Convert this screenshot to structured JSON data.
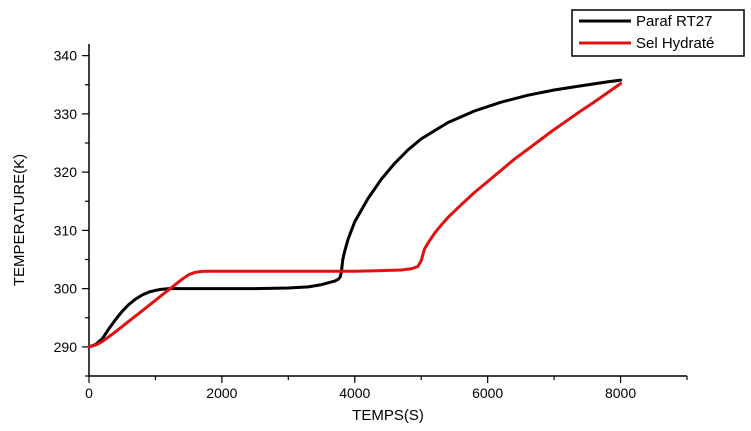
{
  "chart_data": {
    "type": "line",
    "title": "",
    "xlabel": "TEMPS(S)",
    "ylabel": "TEMPERATURE(K)",
    "xlim": [
      0,
      9000
    ],
    "ylim": [
      285,
      342
    ],
    "xticks": [
      0,
      2000,
      4000,
      6000,
      8000
    ],
    "xtick_labels": [
      "0",
      "2000",
      "4000",
      "6000",
      "8000"
    ],
    "yticks": [
      290,
      300,
      310,
      320,
      330,
      340
    ],
    "ytick_labels": [
      "290",
      "300",
      "310",
      "320",
      "330",
      "340"
    ],
    "grid": false,
    "legend_position": "top-right",
    "series": [
      {
        "name": "Paraf RT27",
        "color": "#000000",
        "x": [
          0,
          100,
          200,
          300,
          400,
          500,
          600,
          700,
          800,
          900,
          1000,
          1100,
          1200,
          1500,
          2000,
          2500,
          3000,
          3300,
          3500,
          3600,
          3700,
          3750,
          3780,
          3800,
          3820,
          3850,
          3900,
          4000,
          4200,
          4400,
          4600,
          4800,
          5000,
          5400,
          5800,
          6200,
          6600,
          7000,
          7400,
          7800,
          8000
        ],
        "y": [
          290,
          290.4,
          291.4,
          293.1,
          294.7,
          296.1,
          297.3,
          298.2,
          298.9,
          299.4,
          299.7,
          299.9,
          300,
          300,
          300,
          300,
          300.1,
          300.3,
          300.7,
          301,
          301.3,
          301.6,
          302,
          303,
          305,
          306.5,
          308.5,
          311.5,
          315.5,
          318.8,
          321.5,
          323.8,
          325.7,
          328.5,
          330.5,
          332,
          333.2,
          334.1,
          334.8,
          335.5,
          335.8
        ]
      },
      {
        "name": "Sel Hydraté",
        "color": "#e01010",
        "x": [
          0,
          100,
          200,
          400,
          600,
          800,
          1000,
          1200,
          1400,
          1500,
          1600,
          1700,
          1800,
          2000,
          2500,
          3000,
          3500,
          4000,
          4400,
          4700,
          4850,
          4950,
          5000,
          5050,
          5100,
          5200,
          5300,
          5400,
          5600,
          5800,
          6000,
          6200,
          6400,
          6600,
          6800,
          7000,
          7200,
          7400,
          7600,
          7800,
          8000
        ],
        "y": [
          290,
          290.3,
          290.9,
          292.6,
          294.4,
          296.2,
          298,
          299.8,
          301.6,
          302.4,
          302.8,
          302.95,
          303,
          303,
          303,
          303,
          303,
          303,
          303.1,
          303.2,
          303.4,
          303.8,
          304.8,
          306.8,
          307.8,
          309.5,
          310.9,
          312.2,
          314.4,
          316.5,
          318.4,
          320.3,
          322.2,
          323.9,
          325.6,
          327.3,
          328.9,
          330.5,
          332,
          333.6,
          335.2
        ]
      }
    ]
  }
}
